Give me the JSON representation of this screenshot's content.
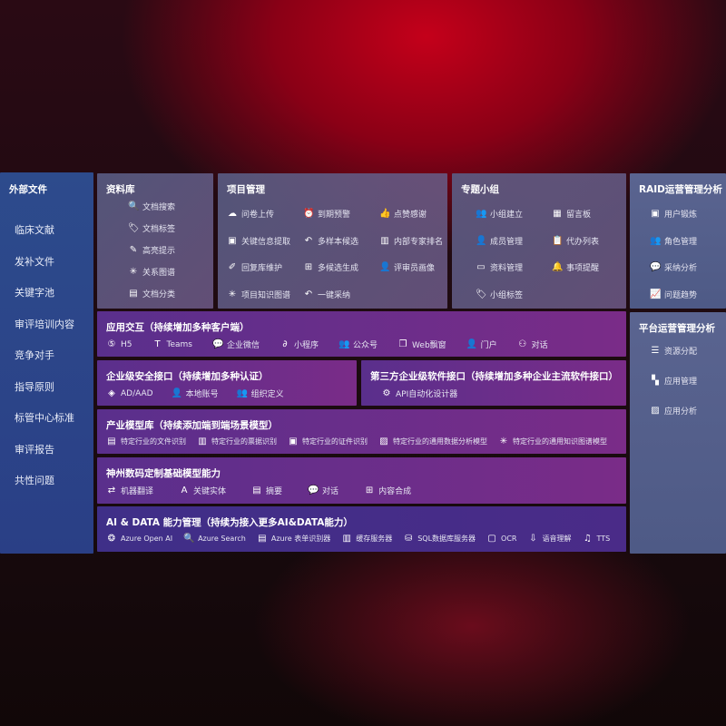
{
  "sidebar": {
    "title": "外部文件",
    "items": [
      "临床文献",
      "发补文件",
      "关键字池",
      "审评培训内容",
      "竞争对手",
      "指导原则",
      "标管中心标准",
      "审评报告",
      "共性问题"
    ]
  },
  "library": {
    "title": "资料库",
    "items": [
      {
        "icon": "doc-search-icon",
        "g": "🔍",
        "label": "文档搜索"
      },
      {
        "icon": "tag-icon",
        "g": "🏷",
        "label": "文档标签"
      },
      {
        "icon": "pen-icon",
        "g": "✎",
        "label": "高亮提示"
      },
      {
        "icon": "graph-icon",
        "g": "✳",
        "label": "关系图谱"
      },
      {
        "icon": "folder-icon",
        "g": "▤",
        "label": "文档分类"
      }
    ]
  },
  "project": {
    "title": "项目管理",
    "items": [
      {
        "icon": "cloud-upload-icon",
        "g": "☁",
        "label": "问卷上传"
      },
      {
        "icon": "alarm-icon",
        "g": "⏰",
        "label": "到期预警"
      },
      {
        "icon": "thumbs-up-icon",
        "g": "👍",
        "label": "点赞感谢"
      },
      {
        "icon": "extract-icon",
        "g": "▣",
        "label": "关键信息提取"
      },
      {
        "icon": "reply-icon",
        "g": "↶",
        "label": "多样本候选"
      },
      {
        "icon": "rank-icon",
        "g": "▥",
        "label": "内部专家排名"
      },
      {
        "icon": "edit-icon",
        "g": "✐",
        "label": "回复库维护"
      },
      {
        "icon": "puzzle-icon",
        "g": "⊞",
        "label": "多候选生成"
      },
      {
        "icon": "person-icon",
        "g": "👤",
        "label": "评审员画像"
      },
      {
        "icon": "graph-icon",
        "g": "✳",
        "label": "项目知识图谱"
      },
      {
        "icon": "reply-icon",
        "g": "↶",
        "label": "一键采纳"
      }
    ]
  },
  "group": {
    "title": "专题小组",
    "items": [
      {
        "icon": "group-icon",
        "g": "👥",
        "label": "小组建立"
      },
      {
        "icon": "bbs-icon",
        "g": "▦",
        "label": "留言板"
      },
      {
        "icon": "member-icon",
        "g": "👤",
        "label": "成员管理"
      },
      {
        "icon": "clipboard-icon",
        "g": "📋",
        "label": "代办列表"
      },
      {
        "icon": "folder-icon",
        "g": "▭",
        "label": "资料管理"
      },
      {
        "icon": "bell-icon",
        "g": "🔔",
        "label": "事项提醒"
      },
      {
        "icon": "tag-icon",
        "g": "🏷",
        "label": "小组标签"
      }
    ]
  },
  "raid": {
    "title": "RAID运营管理分析",
    "items": [
      {
        "icon": "id-card-icon",
        "g": "▣",
        "label": "用户锻炼"
      },
      {
        "icon": "users-icon",
        "g": "👥",
        "label": "角色管理"
      },
      {
        "icon": "qa-icon",
        "g": "💬",
        "label": "采纳分析"
      },
      {
        "icon": "trend-icon",
        "g": "📈",
        "label": "问题趋势"
      }
    ]
  },
  "platform": {
    "title": "平台运营管理分析",
    "items": [
      {
        "icon": "list-icon",
        "g": "☰",
        "label": "资源分配"
      },
      {
        "icon": "apps-icon",
        "g": "▚",
        "label": "应用管理"
      },
      {
        "icon": "analysis-icon",
        "g": "▨",
        "label": "应用分析"
      }
    ]
  },
  "app": {
    "title": "应用交互（持续增加多种客户端）",
    "items": [
      {
        "icon": "html5-icon",
        "g": "⑤",
        "label": "H5"
      },
      {
        "icon": "teams-icon",
        "g": "T",
        "label": "Teams"
      },
      {
        "icon": "wecom-icon",
        "g": "💬",
        "label": "企业微信"
      },
      {
        "icon": "miniprogram-icon",
        "g": "∂",
        "label": "小程序"
      },
      {
        "icon": "public-account-icon",
        "g": "👥",
        "label": "公众号"
      },
      {
        "icon": "window-icon",
        "g": "❐",
        "label": "Web飘窗"
      },
      {
        "icon": "portal-icon",
        "g": "👤",
        "label": "门户"
      },
      {
        "icon": "chat-icon",
        "g": "⚇",
        "label": "对话"
      }
    ]
  },
  "security": {
    "title": "企业级安全接口（持续增加多种认证）",
    "items": [
      {
        "icon": "azure-ad-icon",
        "g": "◈",
        "label": "AD/AAD"
      },
      {
        "icon": "local-account-icon",
        "g": "👤",
        "label": "本地账号"
      },
      {
        "icon": "org-icon",
        "g": "👥",
        "label": "组织定义"
      }
    ]
  },
  "thirdparty": {
    "title": "第三方企业级软件接口（持续增加多种企业主流软件接口）",
    "items": [
      {
        "icon": "gear-icon",
        "g": "⚙",
        "label": "API自动化设计器"
      }
    ]
  },
  "industry": {
    "title": "产业模型库（持续添加端到端场景模型）",
    "items": [
      {
        "icon": "doc-icon",
        "g": "▤",
        "label": "特定行业的文件识别"
      },
      {
        "icon": "receipt-icon",
        "g": "▥",
        "label": "特定行业的票据识别"
      },
      {
        "icon": "id-card-icon",
        "g": "▣",
        "label": "特定行业的证件识别"
      },
      {
        "icon": "chart-icon",
        "g": "▨",
        "label": "特定行业的通用数据分析模型"
      },
      {
        "icon": "graph-icon",
        "g": "✳",
        "label": "特定行业的通用知识图谱模型"
      }
    ]
  },
  "base": {
    "title": "神州数码定制基础模型能力",
    "items": [
      {
        "icon": "translate-icon",
        "g": "⇄",
        "label": "机器翻译"
      },
      {
        "icon": "entity-icon",
        "g": "A",
        "label": "关键实体"
      },
      {
        "icon": "summary-icon",
        "g": "▤",
        "label": "摘要"
      },
      {
        "icon": "chat-icon",
        "g": "💬",
        "label": "对话"
      },
      {
        "icon": "compose-icon",
        "g": "⊞",
        "label": "内容合成"
      }
    ]
  },
  "aidata": {
    "title": "AI & DATA 能力管理（持续为接入更多AI&DATA能力）",
    "items": [
      {
        "icon": "openai-icon",
        "g": "❂",
        "label": "Azure Open AI"
      },
      {
        "icon": "search-doc-icon",
        "g": "🔍",
        "label": "Azure Search"
      },
      {
        "icon": "form-icon",
        "g": "▤",
        "label": "Azure 表单识别器"
      },
      {
        "icon": "cache-icon",
        "g": "▥",
        "label": "缓存服务器"
      },
      {
        "icon": "sql-icon",
        "g": "⛁",
        "label": "SQL数据库服务器"
      },
      {
        "icon": "ocr-icon",
        "g": "▢",
        "label": "OCR"
      },
      {
        "icon": "speech-icon",
        "g": "⇩",
        "label": "语音理解"
      },
      {
        "icon": "tts-icon",
        "g": "♫",
        "label": "TTS"
      }
    ]
  }
}
